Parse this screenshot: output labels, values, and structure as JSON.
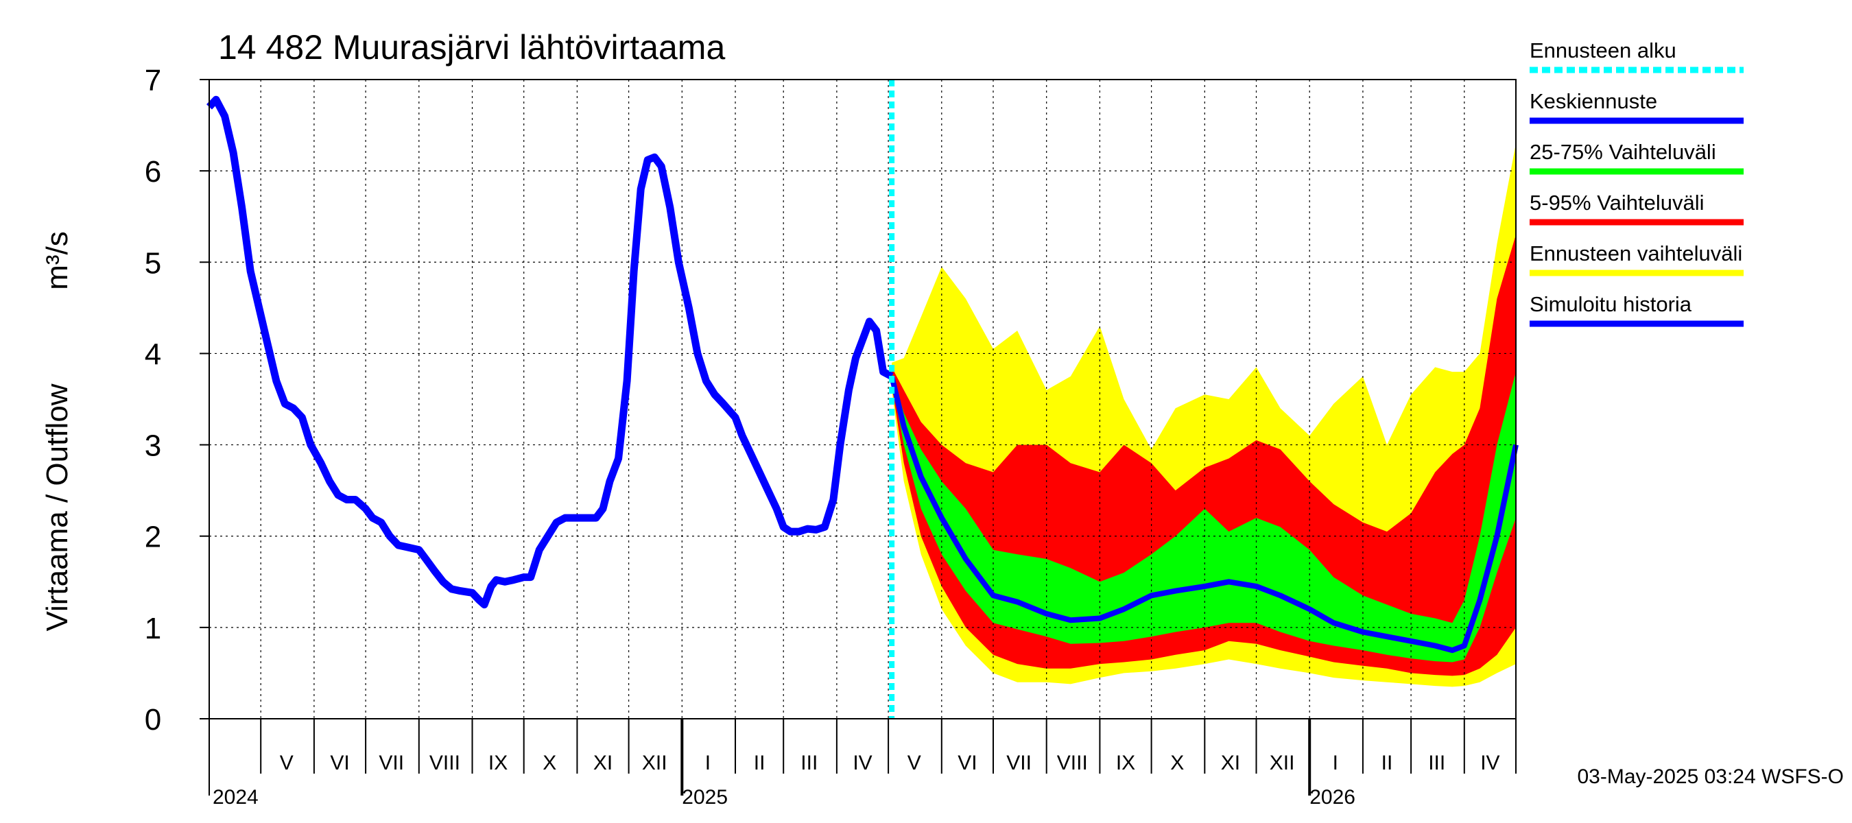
{
  "chart_data": {
    "type": "area",
    "title": "14 482 Muurasjärvi lähtövirtaama",
    "ylabel_left": "Virtaama / Outflow",
    "ylabel_unit": "m³/s",
    "ylim": [
      0,
      7
    ],
    "yticks": [
      "0",
      "1",
      "2",
      "3",
      "4",
      "5",
      "6",
      "7"
    ],
    "grid": true,
    "x_range": [
      "2024-04-01",
      "2026-05-01"
    ],
    "forecast_start": "2025-05-03",
    "month_labels": [
      {
        "label": "V",
        "date": "2024-05-16"
      },
      {
        "label": "VI",
        "date": "2024-06-16"
      },
      {
        "label": "VII",
        "date": "2024-07-16"
      },
      {
        "label": "VIII",
        "date": "2024-08-16"
      },
      {
        "label": "IX",
        "date": "2024-09-16"
      },
      {
        "label": "X",
        "date": "2024-10-16"
      },
      {
        "label": "XI",
        "date": "2024-11-16"
      },
      {
        "label": "XII",
        "date": "2024-12-16"
      },
      {
        "label": "I",
        "date": "2025-01-16"
      },
      {
        "label": "II",
        "date": "2025-02-15"
      },
      {
        "label": "III",
        "date": "2025-03-16"
      },
      {
        "label": "IV",
        "date": "2025-04-16"
      },
      {
        "label": "V",
        "date": "2025-05-16"
      },
      {
        "label": "VI",
        "date": "2025-06-16"
      },
      {
        "label": "VII",
        "date": "2025-07-16"
      },
      {
        "label": "VIII",
        "date": "2025-08-16"
      },
      {
        "label": "IX",
        "date": "2025-09-16"
      },
      {
        "label": "X",
        "date": "2025-10-16"
      },
      {
        "label": "XI",
        "date": "2025-11-16"
      },
      {
        "label": "XII",
        "date": "2025-12-16"
      },
      {
        "label": "I",
        "date": "2026-01-16"
      },
      {
        "label": "II",
        "date": "2026-02-15"
      },
      {
        "label": "III",
        "date": "2026-03-16"
      },
      {
        "label": "IV",
        "date": "2026-04-16"
      }
    ],
    "year_labels": [
      {
        "label": "2024",
        "date": "2024-04-03"
      },
      {
        "label": "2025",
        "date": "2025-01-01"
      },
      {
        "label": "2026",
        "date": "2026-01-01"
      }
    ],
    "history": {
      "name": "Simuloitu historia",
      "color": "#0000ff",
      "points": [
        [
          "2024-04-01",
          6.7
        ],
        [
          "2024-04-05",
          6.78
        ],
        [
          "2024-04-10",
          6.6
        ],
        [
          "2024-04-15",
          6.2
        ],
        [
          "2024-04-20",
          5.6
        ],
        [
          "2024-04-25",
          4.9
        ],
        [
          "2024-04-30",
          4.5
        ],
        [
          "2024-05-05",
          4.1
        ],
        [
          "2024-05-10",
          3.7
        ],
        [
          "2024-05-15",
          3.45
        ],
        [
          "2024-05-20",
          3.4
        ],
        [
          "2024-05-25",
          3.3
        ],
        [
          "2024-05-30",
          3.0
        ],
        [
          "2024-06-05",
          2.8
        ],
        [
          "2024-06-10",
          2.6
        ],
        [
          "2024-06-15",
          2.45
        ],
        [
          "2024-06-20",
          2.4
        ],
        [
          "2024-06-25",
          2.4
        ],
        [
          "2024-07-01",
          2.3
        ],
        [
          "2024-07-05",
          2.2
        ],
        [
          "2024-07-10",
          2.15
        ],
        [
          "2024-07-15",
          2.0
        ],
        [
          "2024-07-20",
          1.9
        ],
        [
          "2024-07-25",
          1.88
        ],
        [
          "2024-08-01",
          1.85
        ],
        [
          "2024-08-05",
          1.75
        ],
        [
          "2024-08-10",
          1.62
        ],
        [
          "2024-08-15",
          1.5
        ],
        [
          "2024-08-20",
          1.42
        ],
        [
          "2024-08-25",
          1.4
        ],
        [
          "2024-09-01",
          1.38
        ],
        [
          "2024-09-05",
          1.3
        ],
        [
          "2024-09-08",
          1.25
        ],
        [
          "2024-09-12",
          1.45
        ],
        [
          "2024-09-15",
          1.52
        ],
        [
          "2024-09-20",
          1.5
        ],
        [
          "2024-09-25",
          1.52
        ],
        [
          "2024-10-01",
          1.55
        ],
        [
          "2024-10-05",
          1.55
        ],
        [
          "2024-10-10",
          1.85
        ],
        [
          "2024-10-15",
          2.0
        ],
        [
          "2024-10-20",
          2.15
        ],
        [
          "2024-10-25",
          2.2
        ],
        [
          "2024-11-01",
          2.2
        ],
        [
          "2024-11-08",
          2.2
        ],
        [
          "2024-11-12",
          2.2
        ],
        [
          "2024-11-16",
          2.3
        ],
        [
          "2024-11-20",
          2.6
        ],
        [
          "2024-11-25",
          2.85
        ],
        [
          "2024-11-30",
          3.7
        ],
        [
          "2024-12-04",
          4.9
        ],
        [
          "2024-12-08",
          5.8
        ],
        [
          "2024-12-12",
          6.12
        ],
        [
          "2024-12-16",
          6.15
        ],
        [
          "2024-12-20",
          6.05
        ],
        [
          "2024-12-25",
          5.6
        ],
        [
          "2024-12-30",
          5.0
        ],
        [
          "2025-01-05",
          4.5
        ],
        [
          "2025-01-10",
          4.0
        ],
        [
          "2025-01-15",
          3.7
        ],
        [
          "2025-01-20",
          3.55
        ],
        [
          "2025-01-25",
          3.45
        ],
        [
          "2025-02-01",
          3.3
        ],
        [
          "2025-02-05",
          3.1
        ],
        [
          "2025-02-10",
          2.9
        ],
        [
          "2025-02-15",
          2.7
        ],
        [
          "2025-02-20",
          2.5
        ],
        [
          "2025-02-25",
          2.3
        ],
        [
          "2025-03-01",
          2.1
        ],
        [
          "2025-03-05",
          2.05
        ],
        [
          "2025-03-10",
          2.05
        ],
        [
          "2025-03-15",
          2.08
        ],
        [
          "2025-03-20",
          2.07
        ],
        [
          "2025-03-25",
          2.1
        ],
        [
          "2025-03-30",
          2.4
        ],
        [
          "2025-04-03",
          3.0
        ],
        [
          "2025-04-08",
          3.6
        ],
        [
          "2025-04-12",
          3.95
        ],
        [
          "2025-04-16",
          4.15
        ],
        [
          "2025-04-20",
          4.35
        ],
        [
          "2025-04-24",
          4.25
        ],
        [
          "2025-04-28",
          3.8
        ],
        [
          "2025-05-03",
          3.75
        ]
      ]
    },
    "forecast": {
      "dates": [
        "2025-05-03",
        "2025-05-10",
        "2025-05-20",
        "2025-06-01",
        "2025-06-15",
        "2025-07-01",
        "2025-07-15",
        "2025-08-01",
        "2025-08-15",
        "2025-09-01",
        "2025-09-15",
        "2025-10-01",
        "2025-10-15",
        "2025-11-01",
        "2025-11-15",
        "2025-12-01",
        "2025-12-15",
        "2026-01-01",
        "2026-01-15",
        "2026-02-01",
        "2026-02-15",
        "2026-03-01",
        "2026-03-15",
        "2026-03-25",
        "2026-04-01",
        "2026-04-10",
        "2026-04-20",
        "2026-05-01"
      ],
      "median": [
        3.75,
        3.2,
        2.65,
        2.2,
        1.75,
        1.35,
        1.28,
        1.15,
        1.08,
        1.1,
        1.2,
        1.35,
        1.4,
        1.45,
        1.5,
        1.45,
        1.35,
        1.2,
        1.05,
        0.95,
        0.9,
        0.85,
        0.8,
        0.75,
        0.8,
        1.3,
        2.0,
        3.0
      ],
      "p25": [
        3.7,
        3.0,
        2.3,
        1.8,
        1.4,
        1.05,
        0.98,
        0.9,
        0.82,
        0.83,
        0.85,
        0.9,
        0.95,
        1.0,
        1.05,
        1.05,
        0.95,
        0.85,
        0.8,
        0.75,
        0.7,
        0.66,
        0.63,
        0.62,
        0.65,
        1.0,
        1.6,
        2.2
      ],
      "p75": [
        3.8,
        3.35,
        2.95,
        2.6,
        2.3,
        1.85,
        1.8,
        1.75,
        1.65,
        1.5,
        1.6,
        1.8,
        2.0,
        2.3,
        2.05,
        2.2,
        2.1,
        1.85,
        1.55,
        1.35,
        1.25,
        1.15,
        1.1,
        1.05,
        1.3,
        2.0,
        3.0,
        3.8
      ],
      "p05": [
        3.65,
        2.8,
        2.0,
        1.45,
        1.0,
        0.7,
        0.6,
        0.55,
        0.55,
        0.6,
        0.62,
        0.65,
        0.7,
        0.75,
        0.85,
        0.82,
        0.75,
        0.68,
        0.62,
        0.58,
        0.55,
        0.5,
        0.48,
        0.47,
        0.48,
        0.55,
        0.7,
        1.0
      ],
      "p95": [
        3.85,
        3.6,
        3.25,
        3.0,
        2.8,
        2.7,
        3.0,
        3.0,
        2.8,
        2.7,
        3.0,
        2.8,
        2.5,
        2.75,
        2.85,
        3.05,
        2.95,
        2.6,
        2.35,
        2.15,
        2.05,
        2.25,
        2.7,
        2.9,
        3.0,
        3.4,
        4.6,
        5.3
      ],
      "min": [
        3.6,
        2.6,
        1.8,
        1.2,
        0.8,
        0.5,
        0.4,
        0.4,
        0.38,
        0.45,
        0.5,
        0.52,
        0.55,
        0.6,
        0.65,
        0.6,
        0.55,
        0.5,
        0.45,
        0.42,
        0.4,
        0.38,
        0.36,
        0.35,
        0.36,
        0.4,
        0.5,
        0.6
      ],
      "max": [
        3.9,
        3.95,
        4.4,
        4.95,
        4.6,
        4.05,
        4.25,
        3.6,
        3.75,
        4.3,
        3.5,
        2.95,
        3.4,
        3.55,
        3.5,
        3.85,
        3.4,
        3.1,
        3.45,
        3.75,
        3.0,
        3.55,
        3.85,
        3.8,
        3.8,
        4.0,
        5.2,
        6.3
      ]
    },
    "legend": [
      {
        "label": "Ennusteen alku",
        "color": "#00ffff",
        "style": "dashed"
      },
      {
        "label": "Keskiennuste",
        "color": "#0000ff",
        "style": "solid"
      },
      {
        "label": "25-75% Vaihteluväli",
        "color": "#00ff00",
        "style": "solid"
      },
      {
        "label": "5-95% Vaihteluväli",
        "color": "#ff0000",
        "style": "solid"
      },
      {
        "label": "Ennusteen vaihteluväli",
        "color": "#ffff00",
        "style": "solid"
      },
      {
        "label": "Simuloitu historia",
        "color": "#0000ff",
        "style": "solid"
      }
    ],
    "legend_position": "right",
    "footer": "03-May-2025 03:24 WSFS-O"
  }
}
